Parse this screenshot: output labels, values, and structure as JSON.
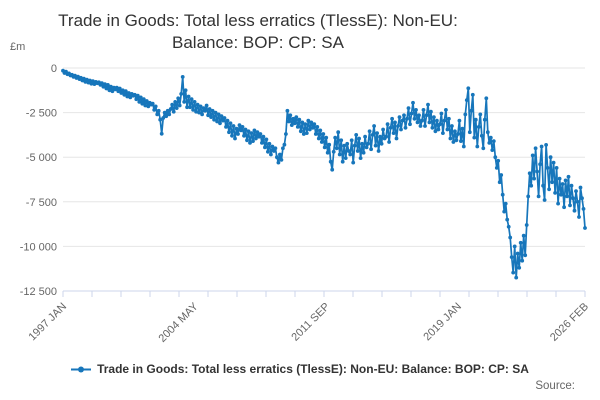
{
  "chart": {
    "title_line1": "Trade in Goods: Total less erratics (TlessE): Non-EU:",
    "title_line2": "Balance: BOP: CP: SA",
    "y_unit": "£m"
  },
  "legend": {
    "label": "Trade in Goods: Total less erratics (TlessE): Non-EU: Balance: BOP: CP: SA"
  },
  "footer": {
    "source_label": "Source:"
  },
  "colors": {
    "series_line": "#1776bb",
    "grid": "#e6e6e6",
    "axis": "#ccd6eb",
    "tick_label": "#666666",
    "title": "#333333"
  },
  "chart_data": {
    "type": "line",
    "title": "Trade in Goods: Total less erratics (TlessE): Non-EU: Balance: BOP: CP: SA",
    "xlabel": "",
    "ylabel": "£m",
    "ylim": [
      -12500,
      0
    ],
    "yticks": [
      0,
      -2500,
      -5000,
      -7500,
      -10000,
      -12500
    ],
    "ytick_labels": [
      "0",
      "-2 500",
      "-5 000",
      "-7 500",
      "-10 000",
      "-12 500"
    ],
    "grid": true,
    "legend_position": "bottom",
    "x_start": "1997 JAN",
    "x_end": "2026 FEB",
    "x_frequency": "monthly",
    "xtick_labels": [
      {
        "label": "1997 JAN",
        "month_index": 0
      },
      {
        "label": "2004 MAY",
        "month_index": 88
      },
      {
        "label": "2011 SEP",
        "month_index": 176
      },
      {
        "label": "2019 JAN",
        "month_index": 264
      },
      {
        "label": "2026 FEB",
        "month_index": 349
      }
    ],
    "values": [
      -150,
      -280,
      -200,
      -350,
      -300,
      -420,
      -380,
      -500,
      -430,
      -560,
      -480,
      -620,
      -550,
      -700,
      -600,
      -780,
      -650,
      -820,
      -700,
      -880,
      -740,
      -900,
      -780,
      -850,
      -800,
      -950,
      -850,
      -1050,
      -900,
      -1150,
      -950,
      -1250,
      -1050,
      -1300,
      -1100,
      -1200,
      -1100,
      -1300,
      -1150,
      -1400,
      -1250,
      -1500,
      -1300,
      -1600,
      -1400,
      -1650,
      -1450,
      -1550,
      -1500,
      -1750,
      -1550,
      -1900,
      -1650,
      -2000,
      -1750,
      -2100,
      -1850,
      -2150,
      -1950,
      -2050,
      -2000,
      -2350,
      -2150,
      -2600,
      -2400,
      -2900,
      -3690,
      -2800,
      -2500,
      -2700,
      -2400,
      -2600,
      -2300,
      -2050,
      -2450,
      -1900,
      -2250,
      -1700,
      -2100,
      -1450,
      -500,
      -1900,
      -1250,
      -2200,
      -1600,
      -2200,
      -1750,
      -2350,
      -1900,
      -2450,
      -2050,
      -2500,
      -2150,
      -2600,
      -2250,
      -2400,
      -2100,
      -2650,
      -2300,
      -2750,
      -2400,
      -2900,
      -2500,
      -3000,
      -2600,
      -3100,
      -2700,
      -2950,
      -2800,
      -3300,
      -2950,
      -3600,
      -3100,
      -3800,
      -3250,
      -3950,
      -3400,
      -3700,
      -3200,
      -3500,
      -3300,
      -3800,
      -3450,
      -4050,
      -3550,
      -4200,
      -3650,
      -4100,
      -3500,
      -3950,
      -3600,
      -3850,
      -3700,
      -4200,
      -3850,
      -4450,
      -4000,
      -4700,
      -4250,
      -4850,
      -4400,
      -4650,
      -4500,
      -5000,
      -5300,
      -4850,
      -5150,
      -4500,
      -4300,
      -3700,
      -2400,
      -3000,
      -2650,
      -3200,
      -2850,
      -3100,
      -2750,
      -3300,
      -2900,
      -3550,
      -3050,
      -3700,
      -3150,
      -3650,
      -2950,
      -3450,
      -3050,
      -3350,
      -3150,
      -3700,
      -3300,
      -3950,
      -3500,
      -4150,
      -3700,
      -4450,
      -3900,
      -4750,
      -4300,
      -5250,
      -5700,
      -4700,
      -3900,
      -4500,
      -3600,
      -4850,
      -4050,
      -5250,
      -4350,
      -5050,
      -4250,
      -4650,
      -4850,
      -4050,
      -5300,
      -4350,
      -3750,
      -4650,
      -3950,
      -5050,
      -4250,
      -4750,
      -3850,
      -4450,
      -4250,
      -3550,
      -4550,
      -3750,
      -3250,
      -4350,
      -3650,
      -4650,
      -3850,
      -4250,
      -3450,
      -3950,
      -3850,
      -3150,
      -4150,
      -3350,
      -2850,
      -3650,
      -3050,
      -3950,
      -3250,
      -2750,
      -3450,
      -2950,
      -2650,
      -3350,
      -2850,
      -2250,
      -3150,
      -2550,
      -1950,
      -2850,
      -2350,
      -3050,
      -2650,
      -3250,
      -2950,
      -2350,
      -3250,
      -2650,
      -2050,
      -3050,
      -2450,
      -3350,
      -2750,
      -3550,
      -2950,
      -3450,
      -3150,
      -2550,
      -3650,
      -2950,
      -2350,
      -3450,
      -2850,
      -3950,
      -3250,
      -4150,
      -3550,
      -4050,
      -3700,
      -2950,
      -4100,
      -3400,
      -4400,
      -2600,
      -1800,
      -1140,
      -3600,
      -2400,
      -1500,
      -3900,
      -2900,
      -4400,
      -3300,
      -2600,
      -3800,
      -4500,
      -2900,
      -1700,
      -3600,
      -4200,
      -3900,
      -4600,
      -4100,
      -5000,
      -5600,
      -5200,
      -6400,
      -6000,
      -7100,
      -8050,
      -7600,
      -8500,
      -8900,
      -9500,
      -10600,
      -11470,
      -10000,
      -11750,
      -10400,
      -11200,
      -9800,
      -10800,
      -9400,
      -10500,
      -8800,
      -7200,
      -5900,
      -6600,
      -4900,
      -6200,
      -4500,
      -5800,
      -7200,
      -5400,
      -4400,
      -6600,
      -7400,
      -4310,
      -5600,
      -6800,
      -5000,
      -6400,
      -5300,
      -7000,
      -5600,
      -7600,
      -6200,
      -7100,
      -6500,
      -7800,
      -6300,
      -7200,
      -6100,
      -7700,
      -6600,
      -7300,
      -8000,
      -6900,
      -7500,
      -8350,
      -6700,
      -7300,
      -7900,
      -8970
    ]
  }
}
